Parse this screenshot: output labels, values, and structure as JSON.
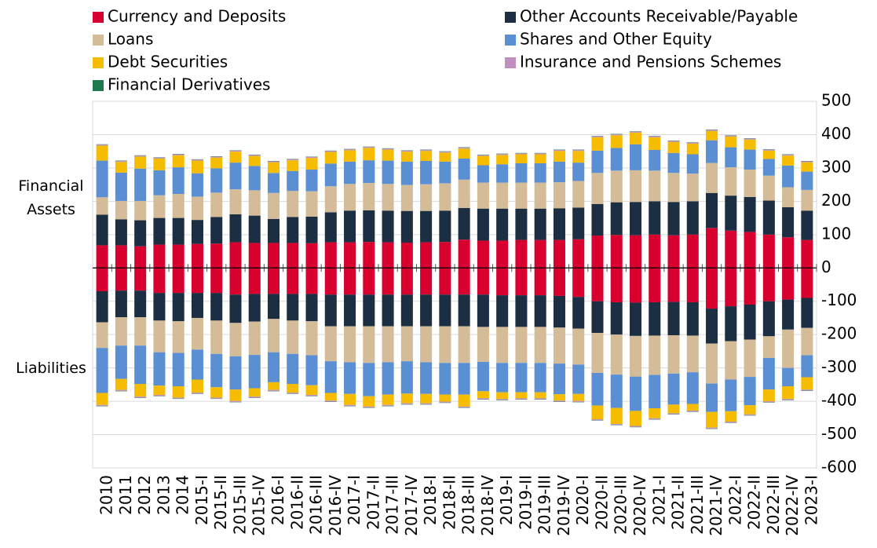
{
  "chart_data": {
    "type": "bar",
    "stacked": true,
    "categories": [
      "2010",
      "2011",
      "2012",
      "2013",
      "2014",
      "2015-I",
      "2015-II",
      "2015-III",
      "2015-IV",
      "2016-I",
      "2016-II",
      "2016-III",
      "2016-IV",
      "2017-I",
      "2017-II",
      "2017-III",
      "2017-IV",
      "2018-I",
      "2018-II",
      "2018-III",
      "2018-IV",
      "2019-I",
      "2019-II",
      "2019-III",
      "2019-IV",
      "2020-I",
      "2020-II",
      "2020-III",
      "2020-IV",
      "2021-I",
      "2021-II",
      "2021-III",
      "2021-IV",
      "2022-I",
      "2022-II",
      "2022-III",
      "2022-IV",
      "2023-I"
    ],
    "annotations": [
      "Financial\nAssets",
      "Liabilities"
    ],
    "ylim": [
      -600,
      500
    ],
    "yticks": [
      -600,
      -500,
      -400,
      -300,
      -200,
      -100,
      0,
      100,
      200,
      300,
      400,
      500
    ],
    "grid": true,
    "series": [
      {
        "name": "Currency and Deposits",
        "color": "#d7002e",
        "values": [
          68,
          68,
          65,
          70,
          70,
          72,
          73,
          77,
          75,
          75,
          75,
          74,
          77,
          77,
          78,
          77,
          76,
          77,
          78,
          85,
          82,
          82,
          84,
          84,
          84,
          86,
          97,
          99,
          98,
          100,
          98,
          100,
          120,
          112,
          108,
          100,
          92,
          84
        ],
        "liabilities": [
          -70,
          -68,
          -68,
          -75,
          -75,
          -75,
          -75,
          -80,
          -78,
          -78,
          -78,
          -78,
          -80,
          -80,
          -80,
          -80,
          -80,
          -80,
          -80,
          -80,
          -80,
          -82,
          -82,
          -82,
          -84,
          -87,
          -100,
          -103,
          -104,
          -103,
          -102,
          -103,
          -122,
          -115,
          -110,
          -100,
          -95,
          -90
        ]
      },
      {
        "name": "Other Accounts Receivable/Payable",
        "color": "#1c2e42",
        "values": [
          92,
          78,
          78,
          80,
          80,
          72,
          80,
          84,
          82,
          72,
          78,
          80,
          90,
          95,
          95,
          95,
          95,
          94,
          94,
          95,
          96,
          96,
          94,
          94,
          95,
          95,
          95,
          98,
          100,
          100,
          100,
          100,
          105,
          105,
          105,
          102,
          90,
          88
        ],
        "liabilities": [
          -93,
          -80,
          -80,
          -83,
          -85,
          -75,
          -83,
          -85,
          -83,
          -75,
          -80,
          -82,
          -95,
          -95,
          -95,
          -95,
          -95,
          -95,
          -95,
          -95,
          -97,
          -95,
          -95,
          -95,
          -95,
          -95,
          -95,
          -97,
          -100,
          -100,
          -100,
          -100,
          -105,
          -105,
          -105,
          -105,
          -90,
          -90
        ]
      },
      {
        "name": "Loans",
        "color": "#d4bc98",
        "values": [
          52,
          55,
          58,
          68,
          72,
          70,
          73,
          75,
          76,
          78,
          78,
          76,
          78,
          80,
          82,
          80,
          78,
          80,
          82,
          85,
          78,
          78,
          78,
          78,
          78,
          80,
          93,
          95,
          95,
          92,
          87,
          83,
          90,
          85,
          82,
          75,
          60,
          62
        ],
        "liabilities": [
          -77,
          -85,
          -85,
          -95,
          -95,
          -95,
          -100,
          -100,
          -100,
          -100,
          -100,
          -102,
          -105,
          -108,
          -110,
          -108,
          -105,
          -108,
          -110,
          -110,
          -105,
          -108,
          -108,
          -108,
          -108,
          -108,
          -120,
          -120,
          -122,
          -118,
          -115,
          -110,
          -120,
          -115,
          -112,
          -65,
          -115,
          -82
        ]
      },
      {
        "name": "Shares and Other Equity",
        "color": "#5a8fd3",
        "values": [
          110,
          85,
          97,
          75,
          80,
          70,
          73,
          80,
          73,
          60,
          60,
          65,
          68,
          67,
          68,
          70,
          70,
          70,
          65,
          63,
          52,
          55,
          58,
          58,
          62,
          55,
          67,
          68,
          78,
          62,
          60,
          58,
          68,
          60,
          60,
          50,
          65,
          55
        ],
        "liabilities": [
          -135,
          -100,
          -115,
          -100,
          -100,
          -90,
          -100,
          -100,
          -100,
          -90,
          -90,
          -90,
          -95,
          -95,
          -100,
          -97,
          -97,
          -95,
          -95,
          -95,
          -88,
          -88,
          -88,
          -88,
          -92,
          -88,
          -98,
          -100,
          -103,
          -100,
          -93,
          -95,
          -85,
          -95,
          -85,
          -95,
          -55,
          -66
        ]
      },
      {
        "name": "Debt Securities",
        "color": "#f5bc00",
        "values": [
          45,
          32,
          36,
          35,
          36,
          38,
          32,
          33,
          30,
          32,
          32,
          35,
          35,
          34,
          37,
          33,
          30,
          30,
          27,
          30,
          28,
          28,
          27,
          27,
          32,
          35,
          40,
          38,
          35,
          38,
          33,
          32,
          28,
          32,
          30,
          25,
          30,
          28
        ],
        "liabilities": [
          -36,
          -33,
          -38,
          -28,
          -34,
          -39,
          -31,
          -34,
          -25,
          -23,
          -26,
          -29,
          -23,
          -33,
          -31,
          -31,
          -29,
          -28,
          -21,
          -36,
          -21,
          -20,
          -18,
          -18,
          -19,
          -21,
          -41,
          -48,
          -45,
          -30,
          -26,
          -20,
          -47,
          -31,
          -27,
          -35,
          -38,
          -37
        ]
      },
      {
        "name": "Insurance and Pensions Schemes",
        "color": "#c090c0",
        "values": [
          3,
          3,
          3,
          3,
          3,
          3,
          3,
          3,
          3,
          3,
          3,
          3,
          3,
          3,
          3,
          3,
          3,
          3,
          3,
          3,
          3,
          3,
          3,
          3,
          3,
          3,
          3,
          3,
          3,
          3,
          3,
          3,
          3,
          3,
          3,
          3,
          3,
          3
        ],
        "liabilities": [
          -3,
          -3,
          -3,
          -3,
          -3,
          -3,
          -3,
          -3,
          -3,
          -3,
          -3,
          -3,
          -3,
          -3,
          -3,
          -3,
          -3,
          -3,
          -3,
          -3,
          -3,
          -3,
          -3,
          -3,
          -3,
          -3,
          -3,
          -3,
          -3,
          -3,
          -3,
          -3,
          -3,
          -3,
          -3,
          -3,
          -3,
          -3
        ]
      },
      {
        "name": "Financial Derivatives",
        "color": "#1e7a4c",
        "values": [
          1,
          1,
          1,
          1,
          1,
          1,
          1,
          1,
          1,
          1,
          1,
          1,
          1,
          1,
          1,
          1,
          1,
          1,
          1,
          1,
          1,
          1,
          1,
          1,
          1,
          1,
          1,
          1,
          1,
          1,
          1,
          1,
          1,
          1,
          1,
          1,
          1,
          1
        ],
        "liabilities": [
          -1,
          -1,
          -1,
          -1,
          -1,
          -1,
          -1,
          -1,
          -1,
          -1,
          -1,
          -1,
          -1,
          -1,
          -1,
          -1,
          -1,
          -1,
          -1,
          -1,
          -1,
          -1,
          -1,
          -1,
          -1,
          -1,
          -1,
          -1,
          -1,
          -1,
          -1,
          -1,
          -1,
          -1,
          -1,
          -1,
          -1,
          -1
        ]
      }
    ]
  }
}
